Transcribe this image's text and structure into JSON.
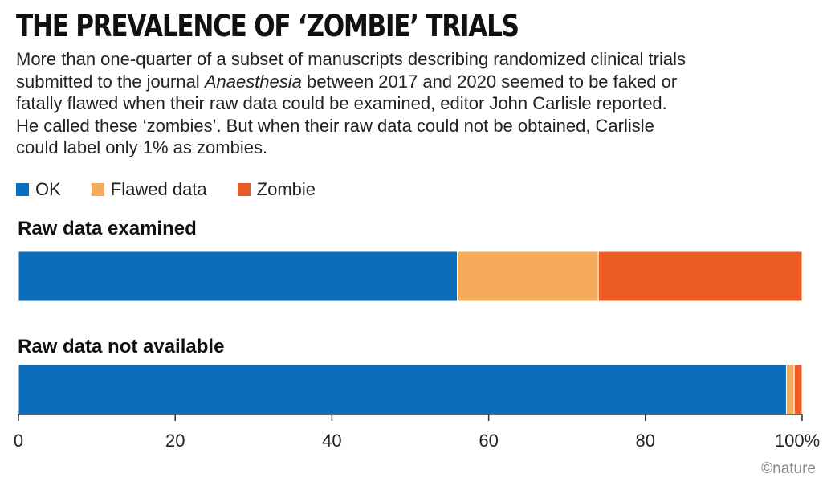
{
  "chart_data": {
    "type": "bar",
    "orientation": "horizontal",
    "stacked": true,
    "title": "THE PREVALENCE OF ‘ZOMBIE’ TRIALS",
    "subtitle_lines": [
      "More than one-quarter of a subset of manuscripts describing randomized clinical trials",
      "submitted to the journal ",
      "Anaesthesia",
      " between 2017 and 2020 seemed to be faked or",
      "fatally flawed when their raw data could be examined, editor John Carlisle reported.",
      "He called these ‘zombies’. But when their raw data could not be obtained, Carlisle",
      "could label only 1% as zombies."
    ],
    "categories": [
      "Raw data examined",
      "Raw data not available"
    ],
    "series": [
      {
        "name": "OK",
        "color": "#0a6ebd",
        "values": [
          56,
          98
        ]
      },
      {
        "name": "Flawed data",
        "color": "#f5ab5b",
        "values": [
          18,
          1
        ]
      },
      {
        "name": "Zombie",
        "color": "#ec5b24",
        "values": [
          26,
          1
        ]
      }
    ],
    "xlim": [
      0,
      100
    ],
    "xticks": [
      {
        "value": 0,
        "label": "0"
      },
      {
        "value": 20,
        "label": "20"
      },
      {
        "value": 40,
        "label": "40"
      },
      {
        "value": 60,
        "label": "60"
      },
      {
        "value": 80,
        "label": "80"
      },
      {
        "value": 100,
        "label": "100%"
      }
    ],
    "legend_position": "top-left",
    "grid": false
  },
  "credit": "©nature"
}
